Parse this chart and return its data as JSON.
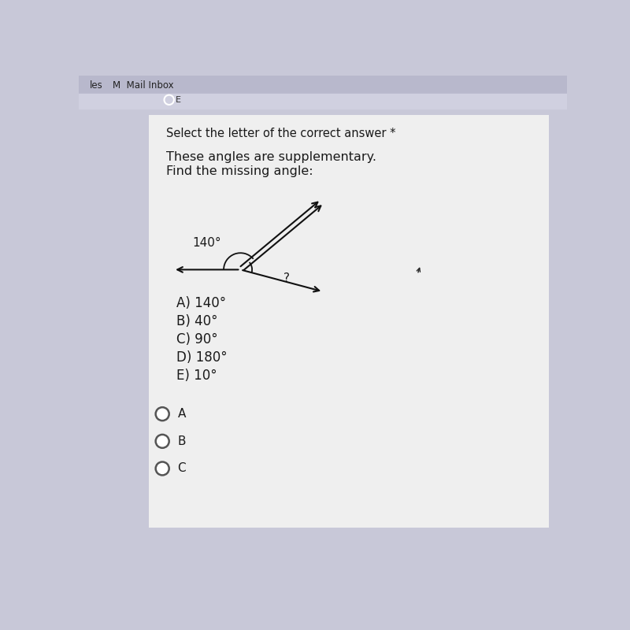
{
  "bg_color": "#c8c8d8",
  "panel_color": "#efefef",
  "header_bg": "#b8b8cc",
  "title_text": "Select the letter of the correct answer *",
  "question_line1": "These angles are supplementary.",
  "question_line2": "Find the missing angle:",
  "angle_label": "140°",
  "missing_label": "?",
  "answer_choices": [
    "A) 140°",
    "B) 40°",
    "C) 90°",
    "D) 180°",
    "E) 10°"
  ],
  "radio_labels": [
    "A",
    "B",
    "C"
  ],
  "text_color": "#1a1a1a",
  "title_fontsize": 10.5,
  "question_fontsize": 11.5,
  "answer_fontsize": 12,
  "radio_fontsize": 11
}
